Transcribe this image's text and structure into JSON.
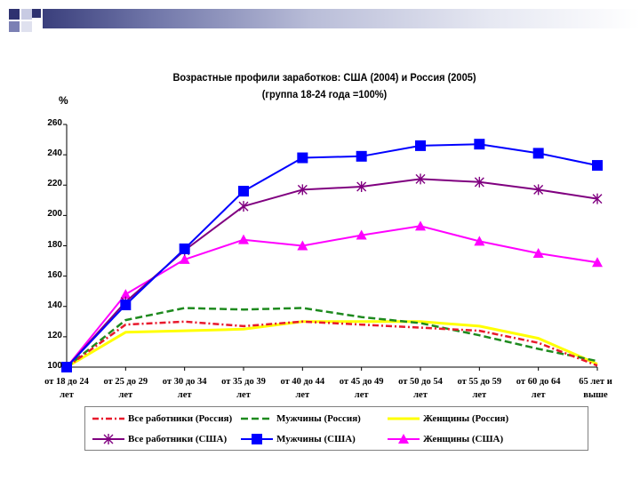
{
  "chart_data": {
    "type": "line",
    "title": "Возрастные профили заработков: США (2004) и Россия (2005)",
    "subtitle": "(группа 18-24 года =100%)",
    "ylabel": "%",
    "xlabel": "",
    "ylim": [
      100,
      260
    ],
    "yticks": [
      100,
      120,
      140,
      160,
      180,
      200,
      220,
      240,
      260
    ],
    "grid": false,
    "legend_position": "bottom",
    "categories": [
      [
        "от 18 до 24",
        "лет"
      ],
      [
        "от 25 до 29",
        "лет"
      ],
      [
        "от 30 до 34",
        "лет"
      ],
      [
        "от 35 до 39",
        "лет"
      ],
      [
        "от 40 до 44",
        "лет"
      ],
      [
        "от 45 до 49",
        "лет"
      ],
      [
        "от 50 до 54",
        "лет"
      ],
      [
        "от 55 до 59",
        "лет"
      ],
      [
        "от 60 до 64",
        "лет"
      ],
      [
        "65 лет и",
        "выше"
      ]
    ],
    "series": [
      {
        "name": "Все работники (Россия)",
        "color": "#e8192c",
        "dash": "dashdot",
        "marker": "none",
        "values": [
          100,
          128,
          130,
          127,
          130,
          128,
          126,
          124,
          116,
          101
        ]
      },
      {
        "name": "Мужчины (Россия)",
        "color": "#1e8a1e",
        "dash": "dash",
        "marker": "none",
        "values": [
          100,
          131,
          139,
          138,
          139,
          133,
          129,
          121,
          112,
          104
        ]
      },
      {
        "name": "Женщины (Россия)",
        "color": "#ffff00",
        "dash": "solid",
        "marker": "none",
        "values": [
          100,
          123,
          124,
          125,
          130,
          130,
          130,
          127,
          119,
          102
        ]
      },
      {
        "name": "Все работники (США)",
        "color": "#800080",
        "dash": "solid",
        "marker": "star",
        "values": [
          100,
          143,
          177,
          206,
          217,
          219,
          224,
          222,
          217,
          211
        ]
      },
      {
        "name": "Мужчины (США)",
        "color": "#0000ff",
        "dash": "solid",
        "marker": "square",
        "values": [
          100,
          141,
          178,
          216,
          238,
          239,
          246,
          247,
          241,
          233
        ]
      },
      {
        "name": "Женщины (США)",
        "color": "#ff00ff",
        "dash": "solid",
        "marker": "triangle",
        "values": [
          100,
          148,
          171,
          184,
          180,
          187,
          193,
          183,
          175,
          169
        ]
      }
    ]
  },
  "decor": {
    "band_dark": "#2e3270",
    "band_mid": "#7b80b4",
    "band_light": "#c8cbe3"
  }
}
